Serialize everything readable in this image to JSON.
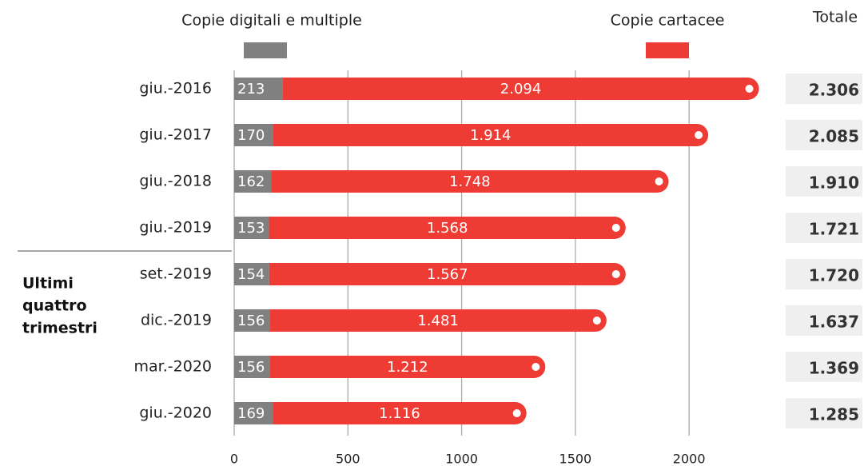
{
  "chart_data": {
    "type": "stacked_bar_horizontal",
    "categories": [
      "giu.-2016",
      "giu.-2017",
      "giu.-2018",
      "giu.-2019",
      "set.-2019",
      "dic.-2019",
      "mar.-2020",
      "giu.-2020"
    ],
    "series": [
      {
        "name": "Copie digitali e multiple",
        "color": "#808080",
        "values": [
          213,
          170,
          162,
          153,
          154,
          156,
          156,
          169
        ]
      },
      {
        "name": "Copie cartacee",
        "color": "#ee3b33",
        "values": [
          2094,
          1914,
          1748,
          1568,
          1567,
          1481,
          1212,
          1116
        ],
        "value_labels": [
          "2.094",
          "1.914",
          "1.748",
          "1.568",
          "1.567",
          "1.481",
          "1.212",
          "1.116"
        ]
      }
    ],
    "totals": {
      "name": "Totale",
      "values": [
        2306,
        2085,
        1910,
        1721,
        1720,
        1637,
        1369,
        1285
      ],
      "value_labels": [
        "2.306",
        "2.085",
        "1.910",
        "1.721",
        "1.720",
        "1.637",
        "1.369",
        "1.285"
      ]
    },
    "annotation": [
      "Ultimi",
      "quattro",
      "trimestri"
    ],
    "xlim": [
      0,
      2400
    ],
    "xticks": [
      0,
      500,
      1000,
      1500,
      2000
    ],
    "grid": true
  }
}
